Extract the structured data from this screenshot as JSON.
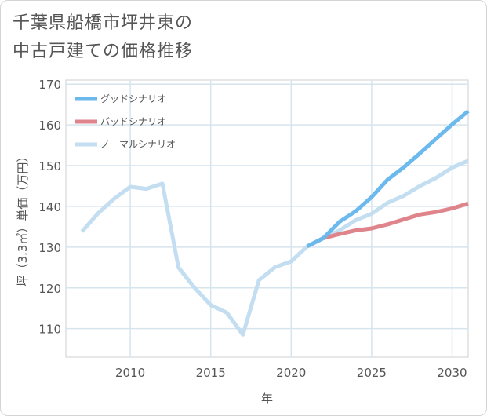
{
  "title_lines": [
    "千葉県船橋市坪井東の",
    "中古戸建ての価格推移"
  ],
  "chart_data": {
    "type": "line",
    "title": "千葉県船橋市坪井東の中古戸建ての価格推移",
    "xlabel": "年",
    "ylabel": "坪（3.3㎡）単価（万円）",
    "xlim": [
      2006,
      2031
    ],
    "ylim": [
      103,
      171
    ],
    "xticks": [
      2010,
      2015,
      2020,
      2025,
      2030
    ],
    "yticks": [
      110,
      120,
      130,
      140,
      150,
      160,
      170
    ],
    "grid": true,
    "legend_position": "top-left",
    "series": [
      {
        "name": "グッドシナリオ",
        "color": "#6cb9ee",
        "x": [
          2021,
          2022,
          2023,
          2024,
          2025,
          2026,
          2027,
          2028,
          2029,
          2030,
          2031
        ],
        "y": [
          130.2,
          132.2,
          136.2,
          138.8,
          142.3,
          146.6,
          149.6,
          153.0,
          156.6,
          160.1,
          163.4
        ]
      },
      {
        "name": "バッドシナリオ",
        "color": "#e0848c",
        "x": [
          2021,
          2022,
          2023,
          2024,
          2025,
          2026,
          2027,
          2028,
          2029,
          2030,
          2031
        ],
        "y": [
          130.2,
          132.2,
          133.2,
          134.1,
          134.6,
          135.6,
          136.8,
          138.0,
          138.6,
          139.5,
          140.7
        ]
      },
      {
        "name": "ノーマルシナリオ",
        "color": "#c3def0",
        "x": [
          2007,
          2008,
          2009,
          2010,
          2011,
          2012,
          2013,
          2014,
          2015,
          2016,
          2017,
          2018,
          2019,
          2020,
          2021,
          2022,
          2023,
          2024,
          2025,
          2026,
          2027,
          2028,
          2029,
          2030,
          2031
        ],
        "y": [
          133.8,
          138.3,
          141.9,
          144.8,
          144.3,
          145.6,
          125.0,
          120.0,
          115.8,
          113.9,
          108.5,
          121.9,
          125.1,
          126.5,
          130.2,
          132.2,
          134.1,
          136.6,
          138.2,
          140.9,
          142.6,
          145.0,
          147.0,
          149.5,
          151.2
        ]
      }
    ]
  }
}
